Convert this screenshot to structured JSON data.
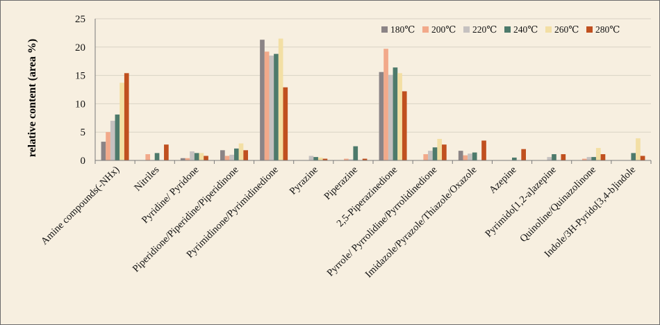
{
  "chart_data": {
    "type": "bar",
    "title": "",
    "xlabel": "",
    "ylabel": "relative content (area %)",
    "ylim": [
      0,
      25
    ],
    "yticks": [
      0,
      5,
      10,
      15,
      20,
      25
    ],
    "grid": "horizontal",
    "legend_position": "top-right",
    "categories": [
      "Amine compounds(-NHx)",
      "Nitriles",
      "Pyridine/ Pyridone",
      "Piperidione/Piperidine/Piperidinone",
      "Pyrimidinone/Pyrimidinedione",
      "Pyrazine",
      "Piperazine",
      "2,5-Piperazinedione",
      "Pyrrole/ Pyrrolidine/Pyrrolidinedione",
      "Imidazole/Pyrazole/Thiazole/Oxazole",
      "Azepine",
      "Pyrimido[1,2-a]azepine",
      "Quinoline/Quinazolinone",
      "Indole/3H-Pyrido[3,4-b]indole"
    ],
    "series": [
      {
        "name": "180℃",
        "color": "#8b8486",
        "values": [
          3.3,
          0,
          0.4,
          1.8,
          21.3,
          0,
          0,
          15.6,
          0,
          1.7,
          0,
          0,
          0,
          0
        ]
      },
      {
        "name": "200℃",
        "color": "#f2a98a",
        "values": [
          5.0,
          1.1,
          0.4,
          0.8,
          19.2,
          0,
          0.3,
          19.7,
          1.1,
          0.9,
          0,
          0,
          0.3,
          0
        ]
      },
      {
        "name": "220℃",
        "color": "#c5c1c0",
        "values": [
          7.0,
          0,
          1.6,
          1.0,
          18.5,
          0.8,
          0.2,
          15.1,
          1.7,
          1.2,
          0,
          0.6,
          0.6,
          0
        ]
      },
      {
        "name": "240℃",
        "color": "#4d7a6b",
        "values": [
          8.1,
          1.3,
          1.3,
          2.1,
          18.8,
          0.6,
          2.5,
          16.4,
          2.3,
          1.4,
          0.5,
          1.1,
          0.6,
          1.3
        ]
      },
      {
        "name": "260℃",
        "color": "#f3dfa4",
        "values": [
          13.7,
          0,
          1.3,
          3.0,
          21.5,
          0.5,
          0,
          15.4,
          3.8,
          0,
          0,
          0,
          2.2,
          3.9
        ]
      },
      {
        "name": "280℃",
        "color": "#c0501f",
        "values": [
          15.4,
          2.8,
          0.8,
          1.8,
          12.9,
          0.3,
          0.3,
          12.2,
          2.8,
          3.5,
          2.0,
          1.1,
          1.1,
          0.8
        ]
      }
    ]
  }
}
